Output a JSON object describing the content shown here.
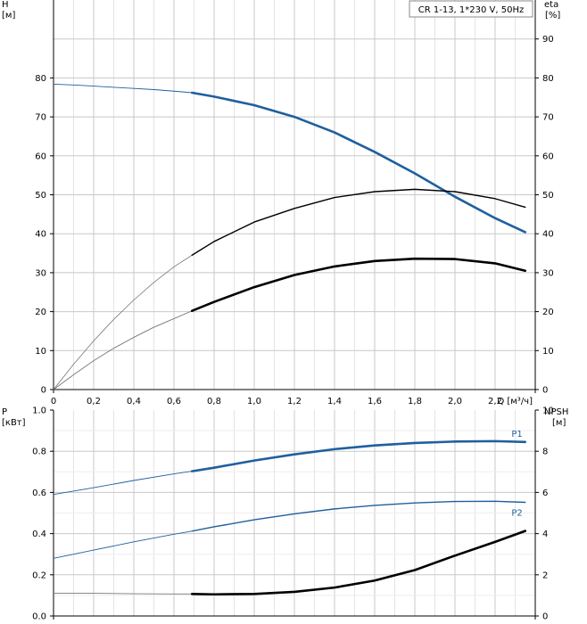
{
  "chart_data": [
    {
      "type": "line",
      "legend": "CR 1-13, 1*230 V, 50Hz",
      "legend_placement": "top-right",
      "grid": true,
      "xlabel": "Q [м³/ч]",
      "xlim": [
        0,
        2.4
      ],
      "x_ticks": [
        "0",
        "0,2",
        "0,4",
        "0,6",
        "0,8",
        "1,0",
        "1,2",
        "1,4",
        "1,6",
        "1,8",
        "2,0",
        "2,2"
      ],
      "ylabel_left": [
        "H",
        "[м]"
      ],
      "ylim_left": [
        0,
        100
      ],
      "y_ticks_left": [
        "0",
        "10",
        "20",
        "30",
        "40",
        "50",
        "60",
        "70",
        "80"
      ],
      "ylabel_right": [
        "eta",
        "[%]"
      ],
      "ylim_right": [
        0,
        100
      ],
      "y_ticks_right": [
        "0",
        "10",
        "20",
        "30",
        "40",
        "50",
        "60",
        "70",
        "80",
        "90"
      ],
      "series": [
        {
          "id": "head",
          "axis": "left",
          "color": "#1f5f9e",
          "ext_x": [
            0,
            0.1,
            0.2,
            0.3,
            0.4,
            0.5,
            0.6,
            0.69
          ],
          "ext_y": [
            78.4,
            78.2,
            77.9,
            77.6,
            77.3,
            77.0,
            76.6,
            76.2
          ],
          "x": [
            0.69,
            0.8,
            1.0,
            1.2,
            1.4,
            1.6,
            1.8,
            2.0,
            2.2,
            2.35
          ],
          "y": [
            76.2,
            75.2,
            73.0,
            70.0,
            66.0,
            61.0,
            55.5,
            49.5,
            44.0,
            40.4
          ]
        },
        {
          "id": "eta_total",
          "axis": "right",
          "color": "#000000",
          "ext_x": [
            0,
            0.1,
            0.2,
            0.3,
            0.4,
            0.5,
            0.6,
            0.69
          ],
          "ext_y": [
            0,
            6.5,
            12.5,
            18.0,
            23.0,
            27.5,
            31.5,
            34.5
          ],
          "x": [
            0.69,
            0.8,
            1.0,
            1.2,
            1.4,
            1.6,
            1.8,
            2.0,
            2.2,
            2.35
          ],
          "y": [
            34.5,
            38.0,
            43.0,
            46.5,
            49.3,
            50.8,
            51.4,
            50.8,
            49.0,
            46.8
          ]
        },
        {
          "id": "eta_pump",
          "axis": "right",
          "color": "#000000",
          "ext_x": [
            0,
            0.1,
            0.2,
            0.3,
            0.4,
            0.5,
            0.6,
            0.69
          ],
          "ext_y": [
            0,
            3.8,
            7.4,
            10.6,
            13.4,
            16.0,
            18.2,
            20.2
          ],
          "x": [
            0.69,
            0.8,
            1.0,
            1.2,
            1.4,
            1.6,
            1.8,
            2.0,
            2.2,
            2.35
          ],
          "y": [
            20.2,
            22.5,
            26.3,
            29.4,
            31.6,
            33.0,
            33.6,
            33.5,
            32.4,
            30.5
          ]
        }
      ]
    },
    {
      "type": "line",
      "grid": true,
      "xlim": [
        0,
        2.4
      ],
      "ylabel_left": [
        "P",
        "[кВт]"
      ],
      "ylim_left": [
        0,
        1.0
      ],
      "y_ticks_left": [
        "0.0",
        "0.2",
        "0.4",
        "0.6",
        "0.8",
        "1.0"
      ],
      "ylabel_right": [
        "NPSH",
        "[м]"
      ],
      "ylim_right": [
        0,
        10
      ],
      "y_ticks_right": [
        "0",
        "2",
        "4",
        "6",
        "8",
        "10"
      ],
      "series": [
        {
          "id": "p1",
          "name": "P1",
          "axis": "left",
          "color": "#1f5f9e",
          "ext_x": [
            0,
            0.2,
            0.4,
            0.6,
            0.69
          ],
          "ext_y": [
            0.59,
            0.623,
            0.658,
            0.69,
            0.703
          ],
          "x": [
            0.69,
            0.8,
            1.0,
            1.2,
            1.4,
            1.6,
            1.8,
            2.0,
            2.2,
            2.35
          ],
          "y": [
            0.703,
            0.72,
            0.755,
            0.785,
            0.81,
            0.828,
            0.84,
            0.847,
            0.849,
            0.845
          ]
        },
        {
          "id": "p2",
          "name": "P2",
          "axis": "left",
          "color": "#1f5f9e",
          "ext_x": [
            0,
            0.2,
            0.4,
            0.6,
            0.69
          ],
          "ext_y": [
            0.28,
            0.32,
            0.36,
            0.397,
            0.412
          ],
          "x": [
            0.69,
            0.8,
            1.0,
            1.2,
            1.4,
            1.6,
            1.8,
            2.0,
            2.2,
            2.35
          ],
          "y": [
            0.412,
            0.433,
            0.467,
            0.496,
            0.52,
            0.537,
            0.549,
            0.556,
            0.557,
            0.552
          ]
        },
        {
          "id": "npsh",
          "axis": "right",
          "color": "#000000",
          "ext_x": [
            0,
            0.2,
            0.4,
            0.6,
            0.69
          ],
          "ext_y": [
            1.1,
            1.1,
            1.08,
            1.07,
            1.07
          ],
          "x": [
            0.69,
            0.8,
            1.0,
            1.2,
            1.4,
            1.6,
            1.8,
            2.0,
            2.2,
            2.35
          ],
          "y": [
            1.07,
            1.05,
            1.07,
            1.17,
            1.38,
            1.72,
            2.23,
            2.93,
            3.6,
            4.13
          ]
        }
      ]
    }
  ]
}
